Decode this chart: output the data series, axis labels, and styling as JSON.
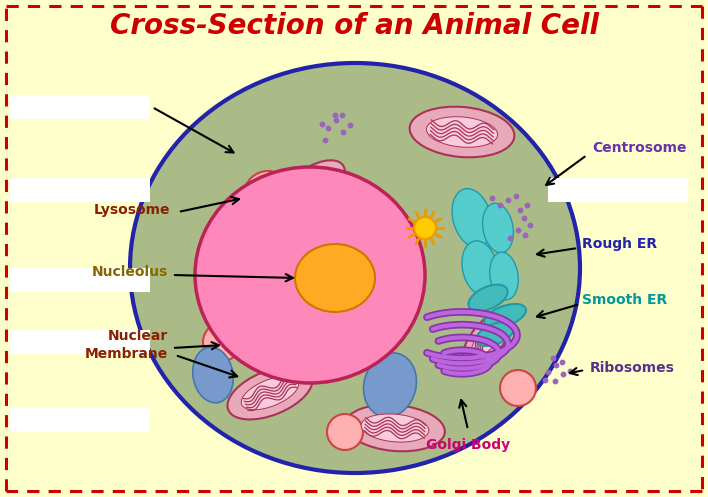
{
  "title": "Cross-Section of an Animal Cell",
  "title_color": "#CC0000",
  "bg_color": "#FFFFCC",
  "border_color": "#CC0000",
  "cell_fc": "#AABB88",
  "cell_ec": "#2222AA",
  "nucleus_fc": "#FF88BB",
  "nucleus_ec": "#BB2255",
  "nucleolus_fc": "#FFAA22",
  "nucleolus_ec": "#CC7700",
  "mito_fc": "#E8AABB",
  "mito_inner_fc": "#F8CCDD",
  "mito_ec": "#AA3355",
  "lyso_fc": "#FFB0B0",
  "lyso_ec": "#CC4444",
  "vacuole_fc": "#88BBEE",
  "vacuole_ec": "#4477AA",
  "rough_er_fc": "#55CCCC",
  "rough_er_ec": "#2299AA",
  "smooth_er_fc": "#44BBBB",
  "smooth_er_ec": "#2299AA",
  "golgi_fc": "#AA44CC",
  "golgi_ec": "#882299",
  "centrosome_fc": "#FFCC00",
  "centrosome_ec": "#EE9900",
  "ribo_color": "#9966BB",
  "label_centrosome": "Centrosome",
  "label_centrosome_color": "#6633AA",
  "label_lysosome": "Lysosome",
  "label_lysosome_color": "#882200",
  "label_rougher": "Rough ER",
  "label_rougher_color": "#2222AA",
  "label_smoother": "Smooth ER",
  "label_smoother_color": "#009999",
  "label_nucleolus": "Nucleolus",
  "label_nucleolus_color": "#886600",
  "label_nucmem": "Nuclear\nMembrane",
  "label_nucmem_color": "#882200",
  "label_ribosomes": "Ribosomes",
  "label_ribosomes_color": "#553388",
  "label_golgi": "Golgi Body",
  "label_golgi_color": "#CC0077"
}
